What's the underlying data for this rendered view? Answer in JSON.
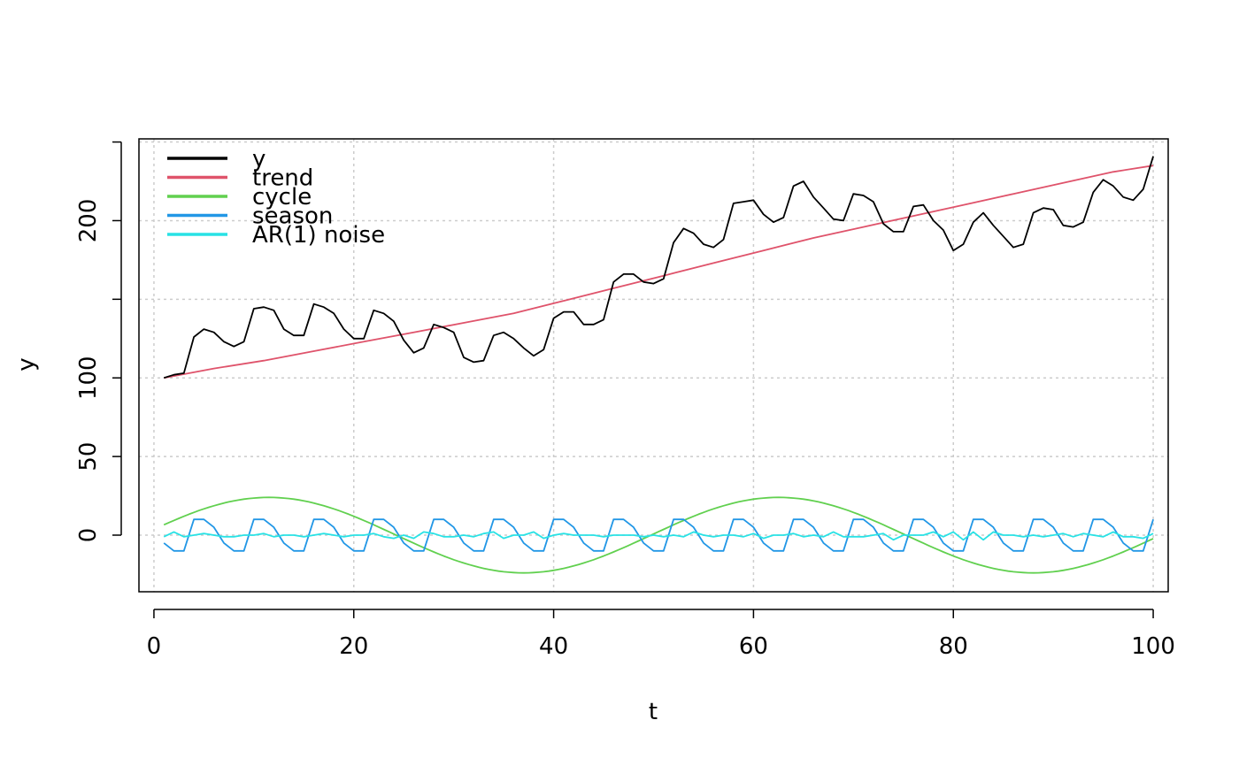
{
  "chart_data": {
    "type": "line",
    "title": "",
    "xlabel": "t",
    "ylabel": "y",
    "xlim": [
      -1.5,
      101.5
    ],
    "ylim": [
      -36,
      252
    ],
    "xticks": [
      0,
      20,
      40,
      60,
      80,
      100
    ],
    "xtick_labels": [
      "0",
      "20",
      "40",
      "60",
      "80",
      "100"
    ],
    "yticks": [
      0,
      50,
      100,
      150,
      200,
      250
    ],
    "ytick_labels": [
      "0",
      "50",
      "100",
      "",
      "200",
      ""
    ],
    "grid": true,
    "legend_position": "top-left",
    "series": [
      {
        "name": "y",
        "color": "#000000",
        "x": [
          1,
          2,
          3,
          4,
          5,
          6,
          7,
          8,
          9,
          10,
          11,
          12,
          13,
          14,
          15,
          16,
          17,
          18,
          19,
          20,
          21,
          22,
          23,
          24,
          25,
          26,
          27,
          28,
          29,
          30,
          31,
          32,
          33,
          34,
          35,
          36,
          37,
          38,
          39,
          40,
          41,
          42,
          43,
          44,
          45,
          46,
          47,
          48,
          49,
          50,
          51,
          52,
          53,
          54,
          55,
          56,
          57,
          58,
          59,
          60,
          61,
          62,
          63,
          64,
          65,
          66,
          67,
          68,
          69,
          70,
          71,
          72,
          73,
          74,
          75,
          76,
          77,
          78,
          79,
          80,
          81,
          82,
          83,
          84,
          85,
          86,
          87,
          88,
          89,
          90,
          91,
          92,
          93,
          94,
          95,
          96,
          97,
          98,
          99,
          100
        ],
        "y": [
          100,
          102,
          103,
          126,
          131,
          129,
          123,
          120,
          123,
          144,
          145,
          143,
          131,
          127,
          127,
          147,
          145,
          141,
          131,
          125,
          125,
          143,
          141,
          136,
          124,
          116,
          119,
          134,
          132,
          129,
          113,
          110,
          111,
          127,
          129,
          125,
          119,
          114,
          118,
          138,
          142,
          142,
          134,
          134,
          137,
          161,
          166,
          166,
          161,
          160,
          163,
          186,
          195,
          192,
          185,
          183,
          188,
          211,
          212,
          213,
          204,
          199,
          202,
          222,
          225,
          215,
          208,
          201,
          200,
          217,
          216,
          212,
          198,
          193,
          193,
          209,
          210,
          200,
          194,
          181,
          185,
          199,
          205,
          197,
          190,
          183,
          185,
          205,
          208,
          207,
          197,
          196,
          199,
          218,
          226,
          222,
          215,
          213,
          220,
          241
        ]
      },
      {
        "name": "trend",
        "color": "#df536b",
        "x": [
          1,
          6,
          11,
          16,
          21,
          26,
          31,
          36,
          41,
          46,
          51,
          56,
          61,
          66,
          71,
          76,
          81,
          86,
          91,
          96,
          100
        ],
        "y": [
          100,
          106,
          111,
          117,
          123,
          129,
          135,
          141,
          149,
          157,
          165,
          173,
          181,
          189,
          196,
          203,
          210,
          217,
          224,
          231,
          235
        ]
      },
      {
        "name": "cycle",
        "color": "#61d04f",
        "period": 51,
        "amplitude": 24,
        "peak_t": 11.5,
        "x_start": 1,
        "x_end": 100
      },
      {
        "name": "season",
        "color": "#2297e6",
        "period_pattern": [
          -5,
          -10,
          -10,
          10,
          10,
          5,
          -5,
          -10,
          -10,
          10,
          10,
          5
        ],
        "x_start": 1,
        "x_end": 100
      },
      {
        "name": "AR(1) noise",
        "color": "#28e2e5",
        "values": [
          -1,
          2,
          -1,
          0,
          1,
          0,
          -1,
          -1,
          0,
          0,
          1,
          -1,
          0,
          0,
          -1,
          0,
          1,
          0,
          -1,
          0,
          0,
          1,
          -1,
          -2,
          0,
          -2,
          2,
          1,
          -1,
          -1,
          0,
          -1,
          1,
          2,
          -2,
          0,
          0,
          2,
          -2,
          0,
          1,
          0,
          0,
          0,
          -1,
          0,
          0,
          0,
          -1,
          0,
          -1,
          0,
          -1,
          2,
          0,
          -1,
          0,
          0,
          -1,
          1,
          -2,
          0,
          0,
          1,
          -1,
          0,
          -1,
          2,
          -1,
          -1,
          -1,
          0,
          1,
          -3,
          0,
          0,
          0,
          2,
          -1,
          2,
          -3,
          2,
          -3,
          2,
          0,
          0,
          -1,
          0,
          -1,
          0,
          1,
          -1,
          1,
          0,
          -1,
          2,
          -1,
          -1,
          -2,
          1
        ]
      }
    ]
  }
}
